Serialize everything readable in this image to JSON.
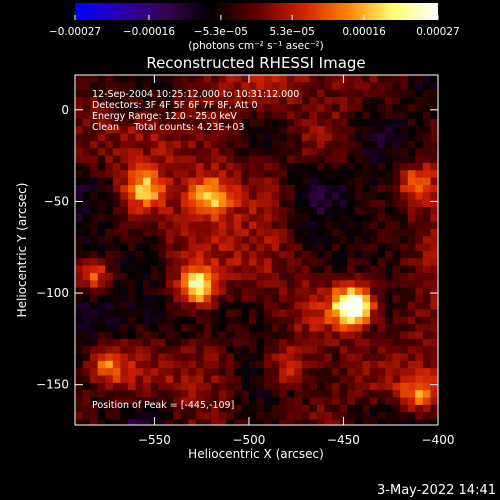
{
  "chart_data": {
    "type": "heatmap",
    "title": "Reconstructed RHESSI Image",
    "xlabel": "Heliocentric X (arcsec)",
    "ylabel": "Heliocentric Y (arcsec)",
    "xlim": [
      -592,
      -400
    ],
    "ylim": [
      -172,
      19
    ],
    "x_ticks": [
      -550,
      -500,
      -450,
      -400
    ],
    "y_ticks": [
      0,
      -50,
      -100,
      -150
    ],
    "x_tick_labels": [
      "−550",
      "−500",
      "−450",
      "−400"
    ],
    "y_tick_labels": [
      "0",
      "−50",
      "−100",
      "−150"
    ],
    "colorbar": {
      "min": -0.00027,
      "max": 0.00027,
      "ticks": [
        -0.00027,
        -0.00016,
        -5.3e-05,
        5.3e-05,
        0.00016,
        0.00027
      ],
      "tick_labels": [
        "−0.00027",
        "−0.00016",
        "−5.3e−05",
        "5.3e−05",
        "0.00016",
        "0.00027"
      ],
      "label": "(photons cm⁻² s⁻¹ asec⁻²)",
      "colormap": [
        "#0000ff",
        "#2a00b4",
        "#3a0050",
        "#000000",
        "#600000",
        "#d02000",
        "#ff8000",
        "#ffff70",
        "#ffffff"
      ]
    },
    "annotations": [
      "12-Sep-2004 10:25:12.000 to 10:31:12.000",
      "Detectors: 3F 4F 5F 6F 7F 8F, Att 0",
      "Energy Range: 12.0 - 25.0 keV",
      "Clean     Total counts: 4.23E+03"
    ],
    "peak_label": "Position of Peak = [-445,-109]",
    "peak": {
      "x": -445,
      "y": -109
    },
    "sources": [
      {
        "x": -445,
        "y": -107,
        "strength": 1.0
      },
      {
        "x": -527,
        "y": -97,
        "strength": 0.75
      },
      {
        "x": -555,
        "y": -43,
        "strength": 0.5
      },
      {
        "x": -520,
        "y": -47,
        "strength": 0.45
      },
      {
        "x": -583,
        "y": -90,
        "strength": 0.5
      },
      {
        "x": -412,
        "y": -40,
        "strength": 0.4
      },
      {
        "x": -410,
        "y": -155,
        "strength": 0.45
      },
      {
        "x": -480,
        "y": -140,
        "strength": 0.35
      },
      {
        "x": -575,
        "y": -140,
        "strength": 0.4
      }
    ],
    "grid": false
  },
  "timestamp": "3-May-2022 14:41"
}
